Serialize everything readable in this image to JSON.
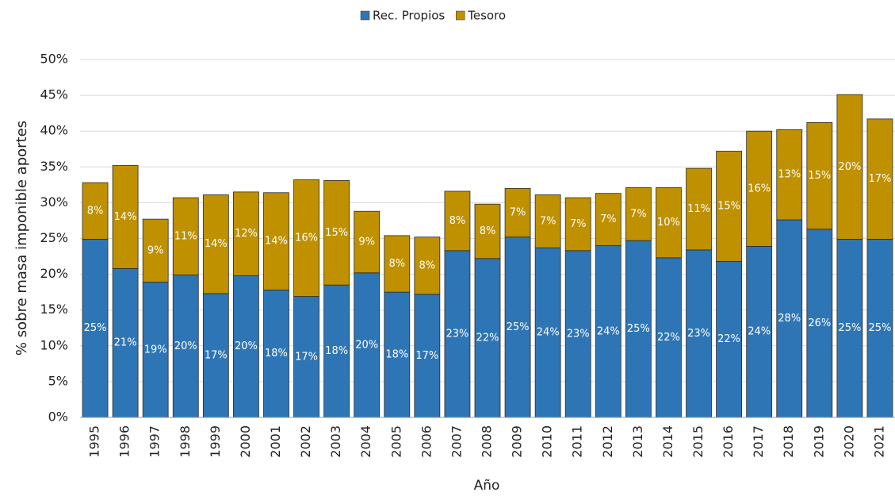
{
  "chart_data": {
    "type": "stacked_bar",
    "x_label": "Año",
    "y_label": "% sobre masa imponible aportes",
    "categories": [
      "1995",
      "1996",
      "1997",
      "1998",
      "1999",
      "2000",
      "2001",
      "2002",
      "2003",
      "2004",
      "2005",
      "2006",
      "2007",
      "2008",
      "2009",
      "2010",
      "2011",
      "2012",
      "2013",
      "2014",
      "2015",
      "2016",
      "2017",
      "2018",
      "2019",
      "2020",
      "2021"
    ],
    "series": [
      {
        "name": "Rec. Propios",
        "color": "#2e75b6",
        "values": [
          24.9,
          20.8,
          18.9,
          19.9,
          17.3,
          19.8,
          17.8,
          16.9,
          18.5,
          20.2,
          17.5,
          17.2,
          23.3,
          22.2,
          25.2,
          23.7,
          23.3,
          24.0,
          24.7,
          22.3,
          23.4,
          21.8,
          23.9,
          27.6,
          26.3,
          24.9,
          24.9
        ],
        "value_labels": [
          "25%",
          "21%",
          "19%",
          "20%",
          "17%",
          "20%",
          "18%",
          "17%",
          "18%",
          "20%",
          "18%",
          "17%",
          "23%",
          "22%",
          "25%",
          "24%",
          "23%",
          "24%",
          "25%",
          "22%",
          "23%",
          "22%",
          "24%",
          "28%",
          "26%",
          "25%",
          "25%"
        ]
      },
      {
        "name": "Tesoro",
        "color": "#bf9000",
        "values": [
          7.9,
          14.4,
          8.8,
          10.8,
          13.8,
          11.7,
          13.6,
          16.3,
          14.6,
          8.6,
          7.9,
          8.0,
          8.3,
          7.6,
          6.8,
          7.4,
          7.4,
          7.3,
          7.4,
          9.8,
          11.4,
          15.4,
          16.1,
          12.6,
          14.9,
          20.2,
          16.8
        ],
        "value_labels": [
          "8%",
          "14%",
          "9%",
          "11%",
          "14%",
          "12%",
          "14%",
          "16%",
          "15%",
          "9%",
          "8%",
          "8%",
          "8%",
          "8%",
          "7%",
          "7%",
          "7%",
          "7%",
          "7%",
          "10%",
          "11%",
          "15%",
          "16%",
          "13%",
          "15%",
          "20%",
          "17%"
        ]
      }
    ],
    "ylim": [
      0,
      50
    ],
    "yticks": [
      {
        "value": 0,
        "label": "0%"
      },
      {
        "value": 5,
        "label": "5%"
      },
      {
        "value": 10,
        "label": "10%"
      },
      {
        "value": 15,
        "label": "15%"
      },
      {
        "value": 20,
        "label": "20%"
      },
      {
        "value": 25,
        "label": "25%"
      },
      {
        "value": 30,
        "label": "30%"
      },
      {
        "value": 35,
        "label": "35%"
      },
      {
        "value": 40,
        "label": "40%"
      },
      {
        "value": 45,
        "label": "45%"
      },
      {
        "value": 50,
        "label": "50%"
      }
    ],
    "grid": true,
    "legend": "top"
  }
}
